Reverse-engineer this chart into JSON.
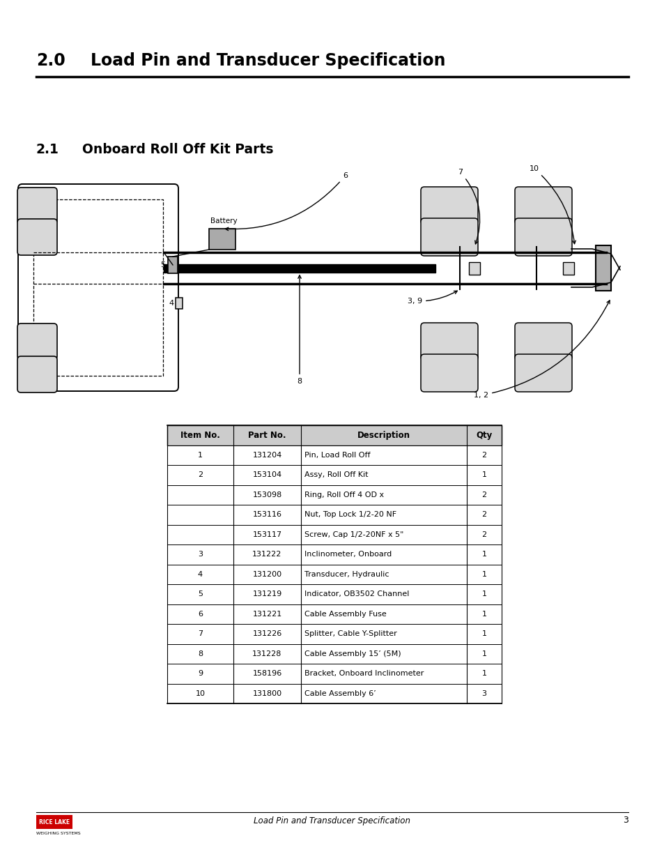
{
  "title_num": "2.0",
  "title_text": "Load Pin and Transducer Specification",
  "section_num": "2.1",
  "section_text": "Onboard Roll Off Kit Parts",
  "table_headers": [
    "Item No.",
    "Part No.",
    "Description",
    "Qty"
  ],
  "table_rows": [
    [
      "1",
      "131204",
      "Pin, Load Roll Off",
      "2"
    ],
    [
      "2",
      "153104",
      "Assy, Roll Off Kit",
      "1"
    ],
    [
      "",
      "153098",
      "Ring, Roll Off 4 OD x",
      "2"
    ],
    [
      "",
      "153116",
      "Nut, Top Lock 1/2-20 NF",
      "2"
    ],
    [
      "",
      "153117",
      "Screw, Cap 1/2-20NF x 5\"",
      "2"
    ],
    [
      "3",
      "131222",
      "Inclinometer, Onboard",
      "1"
    ],
    [
      "4",
      "131200",
      "Transducer, Hydraulic",
      "1"
    ],
    [
      "5",
      "131219",
      "Indicator, OB3502 Channel",
      "1"
    ],
    [
      "6",
      "131221",
      "Cable Assembly Fuse",
      "1"
    ],
    [
      "7",
      "131226",
      "Splitter, Cable Y-Splitter",
      "1"
    ],
    [
      "8",
      "131228",
      "Cable Assembly 15’ (5M)",
      "1"
    ],
    [
      "9",
      "158196",
      "Bracket, Onboard Inclinometer",
      "1"
    ],
    [
      "10",
      "131800",
      "Cable Assembly 6’",
      "3"
    ]
  ],
  "footer_center": "Load Pin and Transducer Specification",
  "footer_page": "3",
  "bg_color": "#ffffff"
}
